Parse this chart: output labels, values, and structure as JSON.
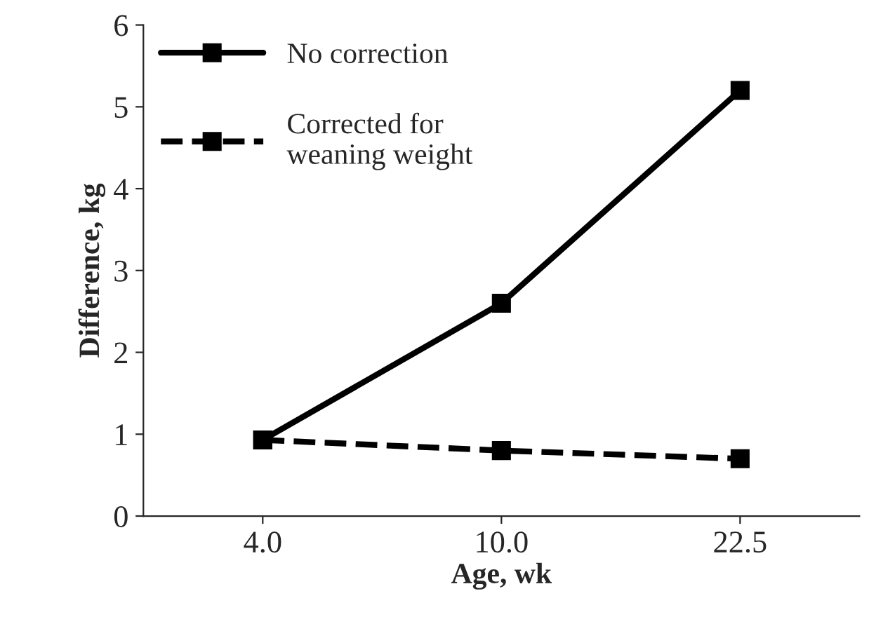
{
  "chart_data": {
    "type": "line",
    "xlabel": "Age, wk",
    "ylabel": "Difference, kg",
    "categories": [
      "4.0",
      "10.0",
      "22.5"
    ],
    "series": [
      {
        "name": "No correction",
        "color": "#000000",
        "line_style": "solid",
        "values": [
          0.93,
          2.6,
          5.2
        ]
      },
      {
        "name": "Corrected for\nweaning weight",
        "color": "#000000",
        "line_style": "dashed",
        "values": [
          0.93,
          0.8,
          0.7
        ]
      }
    ],
    "ylim": [
      0,
      6
    ],
    "yticks": [
      0,
      1,
      2,
      3,
      4,
      5,
      6
    ],
    "marker": "square",
    "legend": "top left",
    "grid": false
  }
}
